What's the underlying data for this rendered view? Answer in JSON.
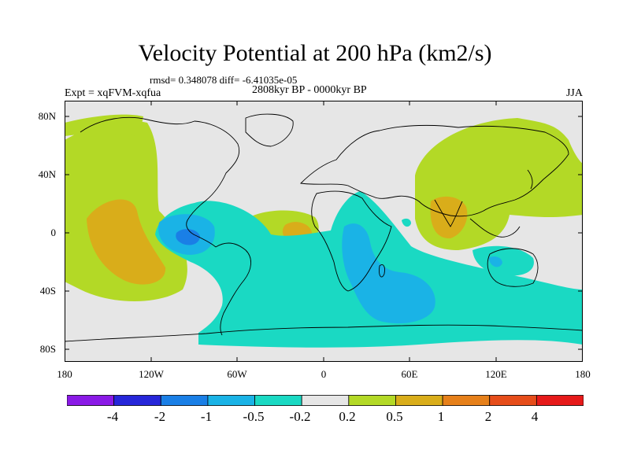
{
  "title": "Velocity Potential at 200 hPa (km2/s)",
  "stats": "rmsd= 0.348078 diff= -6.41035e-05",
  "experiment": "Expt = xqFVM-xqfua",
  "period": "2808kyr BP - 0000kyr BP",
  "season": "JJA",
  "lat_ticks": [
    "80N",
    "40N",
    "0",
    "40S",
    "80S"
  ],
  "lon_ticks": [
    "180",
    "120W",
    "60W",
    "0",
    "60E",
    "120E",
    "180"
  ],
  "colorbar": {
    "colors": [
      "#8a1ae6",
      "#2626d9",
      "#1a7fe6",
      "#1ab3e6",
      "#1ad9c3",
      "#e6e6e6",
      "#b3d926",
      "#d9ad1a",
      "#e6801a",
      "#e64d1a",
      "#e61a1a"
    ],
    "labels": [
      "-4",
      "-2",
      "-1",
      "-0.5",
      "-0.2",
      "0.2",
      "0.5",
      "1",
      "2",
      "4"
    ]
  },
  "palette": {
    "neutral": "#e6e6e6",
    "pos1": "#b3d926",
    "pos2": "#d9ad1a",
    "neg1": "#1ad9c3",
    "neg2": "#1ab3e6",
    "neg3": "#1a7fe6"
  }
}
